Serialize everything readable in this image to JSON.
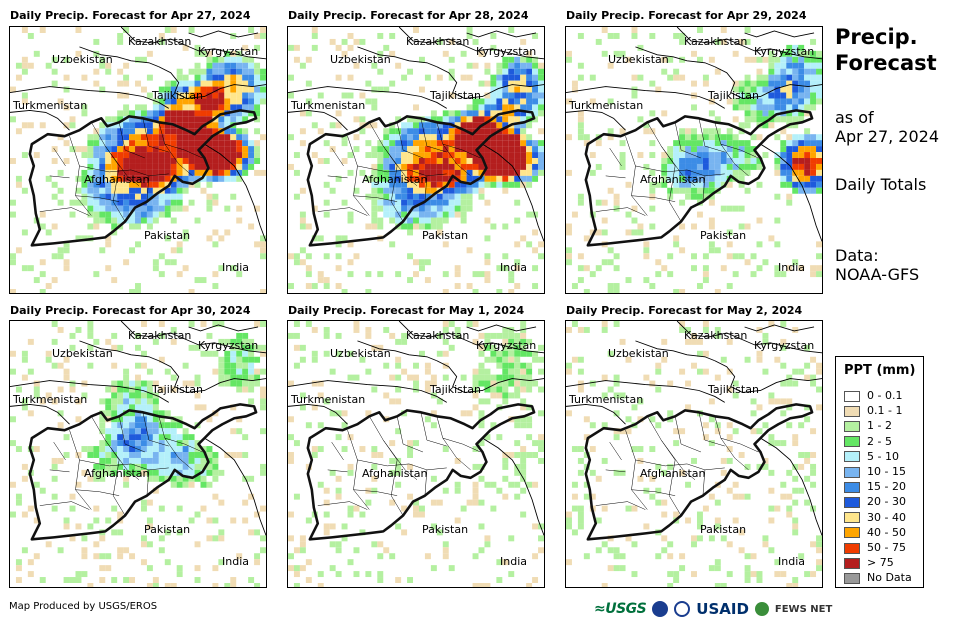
{
  "panels": [
    {
      "title": "Daily Precip. Forecast for Apr 27, 2024",
      "intensity": 1.0
    },
    {
      "title": "Daily Precip. Forecast for Apr 28, 2024",
      "intensity": 0.95
    },
    {
      "title": "Daily Precip. Forecast for Apr 29, 2024",
      "intensity": 0.65
    },
    {
      "title": "Daily Precip. Forecast for Apr 30, 2024",
      "intensity": 0.45
    },
    {
      "title": "Daily Precip. Forecast for May 1, 2024",
      "intensity": 0.2
    },
    {
      "title": "Daily Precip. Forecast for May 2, 2024",
      "intensity": 0.1
    }
  ],
  "map_labels": {
    "kazakhstan": "Kazakhstan",
    "uzbekistan": "Uzbekistan",
    "kyrgyzstan": "Kyrgyzstan",
    "tajikistan": "Tajikistan",
    "turkmenistan": "Turkmenistan",
    "afghanistan": "Afghanistan",
    "pakistan": "Pakistan",
    "india": "India"
  },
  "side": {
    "title_line1": "Precip.",
    "title_line2": "Forecast",
    "as_of": "as of",
    "date": "Apr 27, 2024",
    "totals": "Daily Totals",
    "data_label": "Data:",
    "data_source": "NOAA-GFS"
  },
  "legend": {
    "title": "PPT (mm)",
    "items": [
      {
        "label": "0 - 0.1",
        "color": "#ffffff"
      },
      {
        "label": "0.1 - 1",
        "color": "#f0dcb4"
      },
      {
        "label": "1 - 2",
        "color": "#b4f0a0"
      },
      {
        "label": "2 - 5",
        "color": "#64e664"
      },
      {
        "label": "5 - 10",
        "color": "#b4f0fa"
      },
      {
        "label": "10 - 15",
        "color": "#78b4f0"
      },
      {
        "label": "15 - 20",
        "color": "#3c8ce6"
      },
      {
        "label": "20 - 30",
        "color": "#1e5adc"
      },
      {
        "label": "30 - 40",
        "color": "#ffe68c"
      },
      {
        "label": "40 - 50",
        "color": "#ffa500"
      },
      {
        "label": "50 - 75",
        "color": "#f03c00"
      },
      {
        "label": "> 75",
        "color": "#b41e1e"
      },
      {
        "label": "No Data",
        "color": "#999999"
      }
    ]
  },
  "footer": {
    "credit": "Map Produced by USGS/EROS",
    "logo_usgs": "≈USGS",
    "logo_usaid": "USAID",
    "logo_fews": "FEWS NET"
  }
}
